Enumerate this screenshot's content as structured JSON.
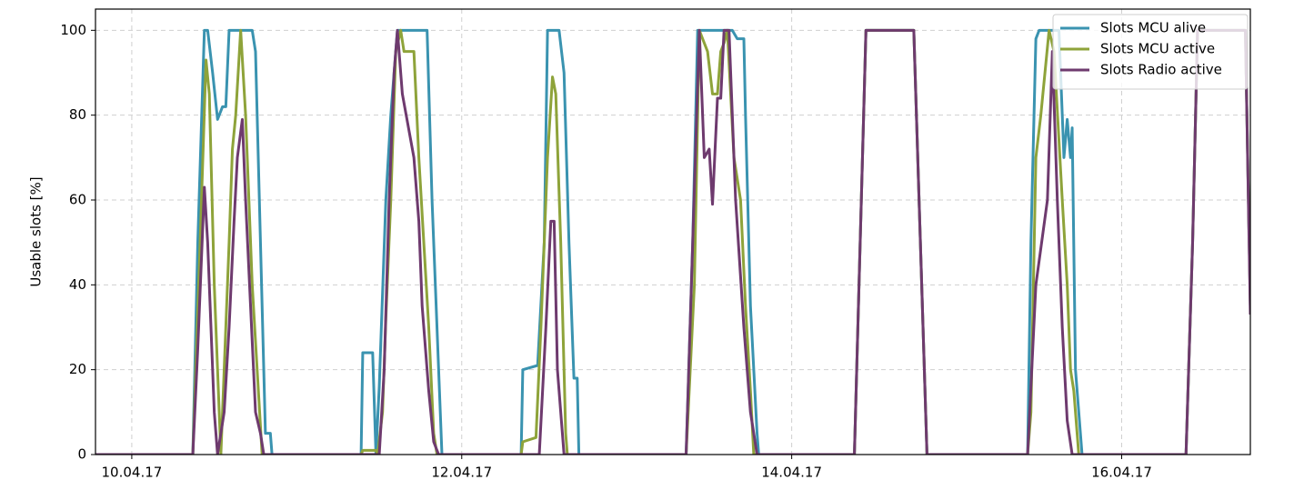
{
  "chart_data": {
    "type": "line",
    "y_label": "Usable slots [%]",
    "xlim": [
      9.78,
      16.78
    ],
    "xticks": [
      {
        "value": 10,
        "label": "10.04.17"
      },
      {
        "value": 12,
        "label": "12.04.17"
      },
      {
        "value": 14,
        "label": "14.04.17"
      },
      {
        "value": 16,
        "label": "16.04.17"
      }
    ],
    "ylim": [
      0,
      105
    ],
    "yticks": [
      0,
      20,
      40,
      60,
      80,
      100
    ],
    "grid": true,
    "legend": "upper right",
    "series": [
      {
        "name": "Slots MCU alive",
        "color": "#3a93b0",
        "x": [
          9.78,
          10.37,
          10.4,
          10.44,
          10.46,
          10.49,
          10.52,
          10.55,
          10.57,
          10.59,
          10.73,
          10.75,
          10.8,
          10.81,
          10.84,
          10.85,
          11.39,
          11.4,
          11.46,
          11.48,
          11.5,
          11.54,
          11.57,
          11.61,
          11.79,
          11.82,
          11.86,
          11.88,
          12.36,
          12.37,
          12.46,
          12.5,
          12.52,
          12.59,
          12.62,
          12.65,
          12.68,
          12.7,
          12.71,
          13.36,
          13.4,
          13.43,
          13.64,
          13.67,
          13.71,
          13.72,
          13.75,
          13.79,
          13.8,
          14.38,
          14.45,
          14.74,
          14.82,
          15.43,
          15.45,
          15.48,
          15.5,
          15.62,
          15.65,
          15.67,
          15.69,
          15.7,
          15.72,
          15.75,
          15.76,
          16.39,
          16.43,
          16.46,
          16.75,
          16.78
        ],
        "values": [
          0,
          0,
          50,
          100,
          100,
          90,
          79,
          82,
          82,
          100,
          100,
          95,
          20,
          5,
          5,
          0,
          0,
          24,
          24,
          0,
          16,
          60,
          80,
          100,
          100,
          60,
          20,
          0,
          0,
          20,
          21,
          50,
          100,
          100,
          90,
          50,
          18,
          18,
          0,
          0,
          50,
          100,
          100,
          98,
          98,
          80,
          35,
          5,
          0,
          0,
          100,
          100,
          0,
          0,
          50,
          98,
          100,
          100,
          70,
          79,
          70,
          77,
          20,
          5,
          0,
          0,
          50,
          100,
          100,
          35
        ]
      },
      {
        "name": "Slots MCU active",
        "color": "#8ea33a",
        "x": [
          9.78,
          10.37,
          10.41,
          10.45,
          10.47,
          10.5,
          10.54,
          10.56,
          10.59,
          10.61,
          10.63,
          10.66,
          10.69,
          10.73,
          10.76,
          10.79,
          11.39,
          11.4,
          11.48,
          11.49,
          11.52,
          11.54,
          11.57,
          11.6,
          11.63,
          11.65,
          11.71,
          11.74,
          11.77,
          11.8,
          11.83,
          11.85,
          12.36,
          12.37,
          12.45,
          12.48,
          12.52,
          12.55,
          12.57,
          12.6,
          12.63,
          12.64,
          13.36,
          13.41,
          13.44,
          13.49,
          13.52,
          13.55,
          13.57,
          13.59,
          13.61,
          13.65,
          13.69,
          13.72,
          13.75,
          13.77,
          14.38,
          14.45,
          14.74,
          14.82,
          15.43,
          15.45,
          15.48,
          15.51,
          15.56,
          15.59,
          15.64,
          15.67,
          15.69,
          15.71,
          15.74,
          16.39,
          16.43,
          16.46,
          16.75,
          16.78
        ],
        "values": [
          0,
          0,
          45,
          93,
          85,
          40,
          0,
          20,
          50,
          72,
          80,
          100,
          80,
          40,
          20,
          0,
          0,
          1,
          1,
          0,
          10,
          32,
          60,
          95,
          100,
          95,
          95,
          70,
          50,
          30,
          5,
          0,
          0,
          3,
          4,
          30,
          70,
          89,
          85,
          50,
          5,
          0,
          0,
          40,
          100,
          95,
          85,
          85,
          95,
          97,
          100,
          70,
          60,
          35,
          15,
          0,
          0,
          100,
          100,
          0,
          0,
          10,
          70,
          80,
          100,
          95,
          60,
          40,
          20,
          15,
          0,
          0,
          50,
          100,
          100,
          35
        ]
      },
      {
        "name": "Slots Radio active",
        "color": "#6e3a6e",
        "x": [
          9.78,
          10.37,
          10.4,
          10.44,
          10.46,
          10.5,
          10.52,
          10.56,
          10.59,
          10.62,
          10.64,
          10.67,
          10.69,
          10.72,
          10.75,
          10.78,
          10.8,
          11.5,
          11.53,
          11.56,
          11.59,
          11.61,
          11.64,
          11.71,
          11.74,
          11.76,
          11.8,
          11.83,
          11.86,
          12.47,
          12.51,
          12.54,
          12.56,
          12.58,
          12.62,
          13.36,
          13.4,
          13.44,
          13.47,
          13.5,
          13.52,
          13.55,
          13.57,
          13.59,
          13.62,
          13.66,
          13.71,
          13.75,
          13.79,
          14.38,
          14.45,
          14.74,
          14.82,
          15.43,
          15.48,
          15.55,
          15.58,
          15.61,
          15.64,
          15.67,
          15.7,
          16.39,
          16.43,
          16.46,
          16.75,
          16.78
        ],
        "values": [
          0,
          0,
          25,
          63,
          50,
          10,
          0,
          10,
          30,
          55,
          70,
          79,
          60,
          35,
          10,
          5,
          0,
          0,
          20,
          60,
          90,
          100,
          85,
          70,
          55,
          35,
          15,
          3,
          0,
          0,
          30,
          55,
          55,
          20,
          0,
          0,
          50,
          100,
          70,
          72,
          59,
          84,
          84,
          100,
          100,
          60,
          30,
          10,
          0,
          0,
          100,
          100,
          0,
          0,
          40,
          60,
          95,
          60,
          30,
          8,
          0,
          0,
          50,
          100,
          100,
          33
        ]
      }
    ]
  }
}
